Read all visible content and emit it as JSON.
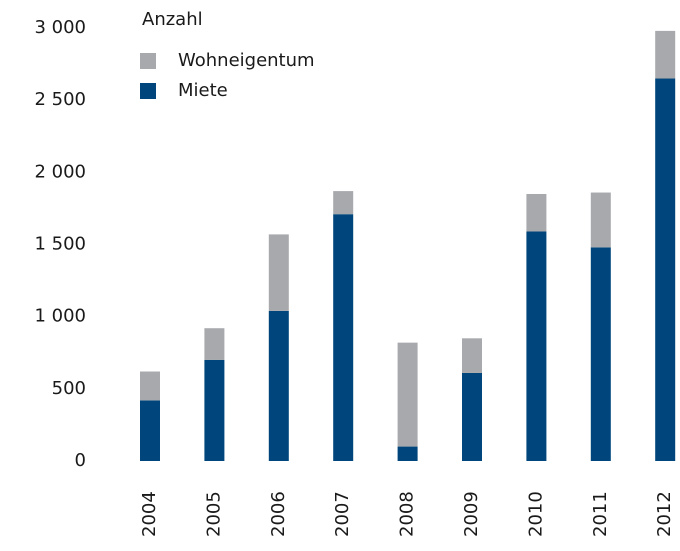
{
  "chart_data": {
    "type": "stacked_bar",
    "legend_title": "Anzahl",
    "categories": [
      "2004",
      "2005",
      "2006",
      "2007",
      "2008",
      "2009",
      "2010",
      "2011",
      "2012"
    ],
    "series": [
      {
        "name": "Wohneigentum",
        "color": "#a7a9ac",
        "values": [
          200,
          220,
          530,
          160,
          720,
          240,
          260,
          380,
          330
        ]
      },
      {
        "name": "Miete",
        "color": "#00457c",
        "values": [
          420,
          700,
          1040,
          1710,
          100,
          610,
          1590,
          1480,
          2650
        ]
      }
    ],
    "ylim": [
      0,
      3000
    ],
    "yticks": [
      0,
      500,
      {
        "value": 1000,
        "label": "1 000"
      },
      {
        "value": 1500,
        "label": "1 500"
      },
      {
        "value": 2000,
        "label": "2 000"
      },
      {
        "value": 2500,
        "label": "2 500"
      },
      {
        "value": 3000,
        "label": "3 000"
      }
    ],
    "grid": false,
    "legend": "top-left"
  }
}
